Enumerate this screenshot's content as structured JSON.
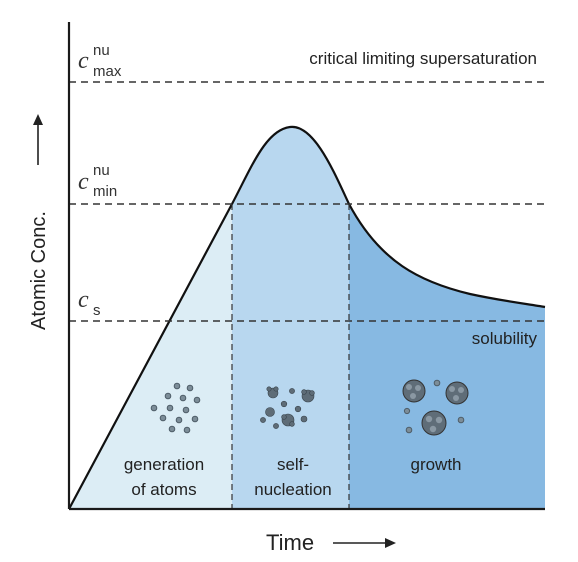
{
  "labels": {
    "y_axis": "Atomic Conc.",
    "x_axis": "Time",
    "c_max_symbol": "c",
    "c_max_sup": "nu",
    "c_max_sub": "max",
    "c_min_symbol": "c",
    "c_min_sup": "nu",
    "c_min_sub": "min",
    "c_s_symbol": "c",
    "c_s_sub": "s",
    "critical": "critical limiting supersaturation",
    "solubility": "solubility"
  },
  "stages": {
    "stage1_line1": "generation",
    "stage1_line2": "of atoms",
    "stage2_line1": "self-",
    "stage2_line2": "nucleation",
    "stage3": "growth"
  },
  "colors": {
    "stage1": "#dcedf5",
    "stage2": "#b8d7ef",
    "stage3": "#87b9e2",
    "axis": "#1a1a1a",
    "particle": "#7c8d98"
  },
  "icons": {
    "y_arrow": "arrow-up-icon",
    "x_arrow": "arrow-right-icon",
    "atoms": "atom-particles-icon",
    "nuclei": "nuclei-clusters-icon",
    "grown": "grown-particles-icon"
  }
}
